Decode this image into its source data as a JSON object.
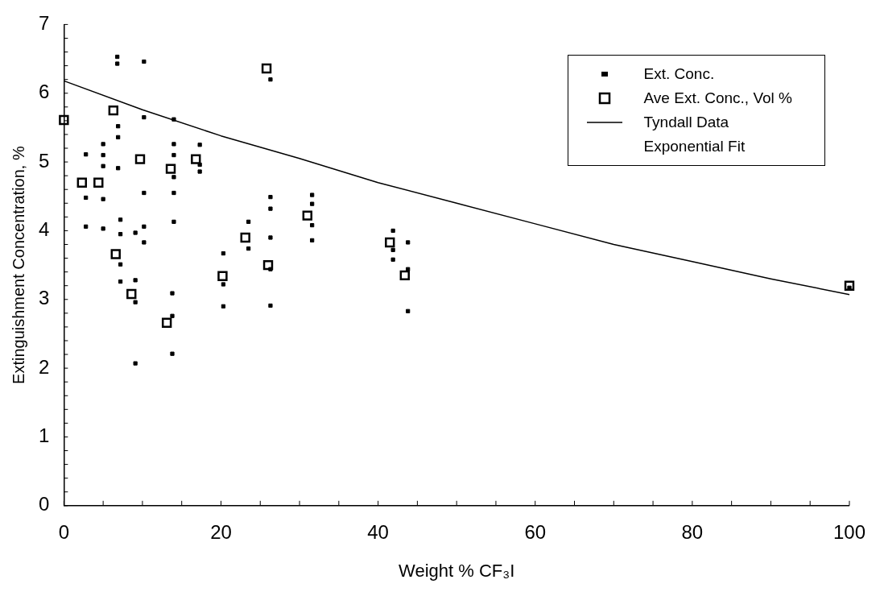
{
  "chart_data": {
    "type": "scatter",
    "xlabel": "Weight % CF₃I",
    "ylabel": "Extinguishment Concentration, %",
    "xlim": [
      0,
      100
    ],
    "xticks": [
      0,
      20,
      40,
      60,
      80,
      100
    ],
    "ylim": [
      0,
      7
    ],
    "yticks": [
      0,
      1,
      2,
      3,
      4,
      5,
      6,
      7
    ],
    "grid": false,
    "legend": "top right",
    "annotations": [
      "Exponential Fit"
    ],
    "series": [
      {
        "name": "Ext. Conc.",
        "color": "#000000",
        "x": [
          6.8,
          6.8,
          10.2,
          10.2,
          14,
          6.9,
          6.9,
          5.0,
          5.0,
          5.0,
          5.0,
          5.0,
          2.8,
          2.8,
          2.8,
          6.9,
          14,
          14,
          14,
          14,
          14,
          17.3,
          17.3,
          17.3,
          10.2,
          10.2,
          10.2,
          7.2,
          7.2,
          7.2,
          7.2,
          9.1,
          9.1,
          9.1,
          9.1,
          13.8,
          13.8,
          13.8,
          26.3,
          20.3,
          20.3,
          20.3,
          23.5,
          23.5,
          26.3,
          26.3,
          26.3,
          26.3,
          26.3,
          31.6,
          31.6,
          31.6,
          31.6,
          41.9,
          41.9,
          41.9,
          43.8,
          43.8,
          43.8,
          100
        ],
        "values": [
          6.53,
          6.43,
          6.46,
          5.65,
          5.62,
          5.52,
          5.36,
          5.26,
          5.1,
          4.94,
          4.46,
          4.03,
          5.11,
          4.48,
          4.06,
          4.91,
          5.26,
          5.1,
          4.78,
          4.55,
          4.13,
          5.25,
          4.96,
          4.86,
          4.55,
          4.06,
          3.83,
          4.16,
          3.95,
          3.51,
          3.26,
          3.97,
          3.28,
          2.96,
          2.07,
          3.09,
          2.76,
          2.21,
          6.2,
          3.67,
          3.22,
          2.9,
          4.13,
          3.74,
          4.49,
          4.32,
          3.9,
          3.44,
          2.91,
          4.52,
          4.39,
          4.08,
          3.86,
          4.0,
          3.72,
          3.58,
          3.83,
          3.44,
          2.83,
          3.17
        ]
      },
      {
        "name": "Ave Ext. Conc., Vol %",
        "marker": "square",
        "color": "#000000",
        "x": [
          0,
          6.3,
          2.3,
          4.4,
          9.7,
          13.6,
          16.8,
          6.6,
          8.6,
          13.1,
          25.8,
          20.2,
          23.1,
          26.0,
          31.0,
          41.5,
          43.4,
          100
        ],
        "values": [
          5.61,
          5.75,
          4.7,
          4.7,
          5.04,
          4.9,
          5.04,
          3.66,
          3.08,
          2.66,
          6.36,
          3.34,
          3.9,
          3.5,
          4.22,
          3.83,
          3.35,
          3.2
        ]
      },
      {
        "name": "Tyndall Data",
        "type": "line",
        "marker": "none",
        "line_style": "solid",
        "color": "#000000",
        "x": [
          0,
          10,
          20,
          30,
          40,
          50,
          60,
          70,
          80,
          90,
          100
        ],
        "values": [
          6.18,
          5.76,
          5.38,
          5.05,
          4.7,
          4.4,
          4.1,
          3.8,
          3.55,
          3.3,
          3.07
        ]
      }
    ]
  }
}
